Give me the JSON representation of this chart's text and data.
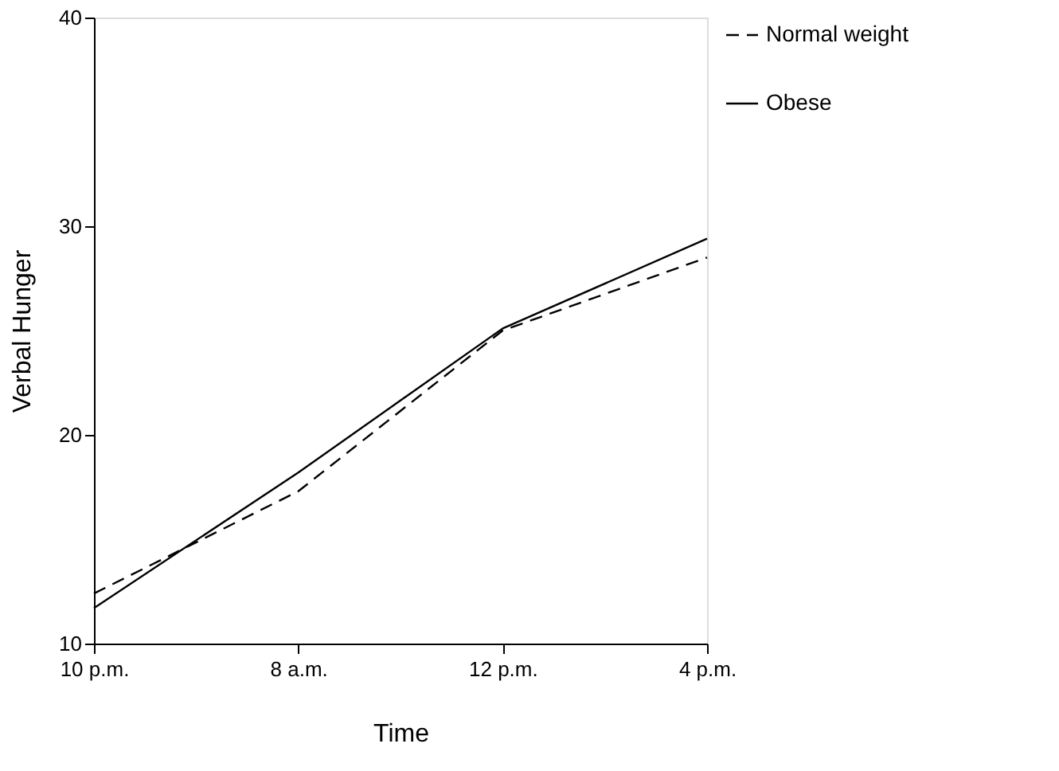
{
  "chart_data": {
    "type": "line",
    "xlabel": "Time",
    "ylabel": "Verbal Hunger",
    "categories": [
      "10 p.m.",
      "8 a.m.",
      "12 p.m.",
      "4 p.m."
    ],
    "series": [
      {
        "name": "Normal weight",
        "color": "#000000",
        "line_style": "dashed",
        "values": [
          12.4,
          17.3,
          25.0,
          28.5
        ]
      },
      {
        "name": "Obese",
        "color": "#000000",
        "line_style": "solid",
        "values": [
          11.7,
          18.2,
          25.1,
          29.4
        ]
      }
    ],
    "ylim": [
      10,
      40
    ],
    "yticks": [
      10,
      20,
      30,
      40
    ],
    "grid": false,
    "legend": "right",
    "marker": "none"
  }
}
